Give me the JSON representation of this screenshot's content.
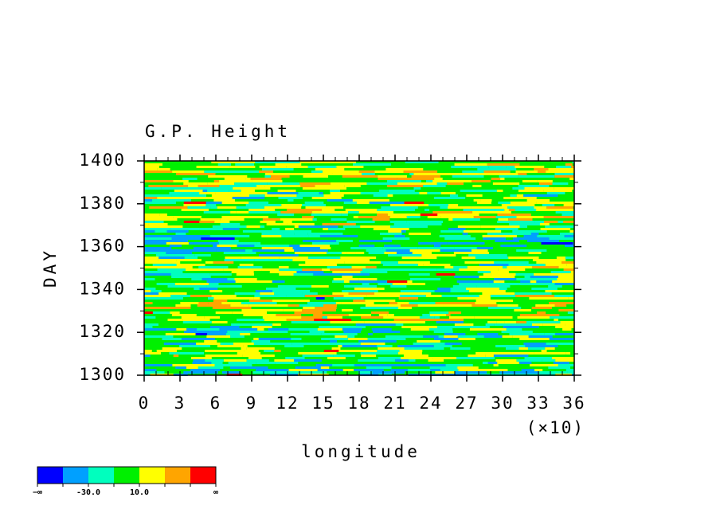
{
  "chart_data": {
    "type": "contour",
    "title": "G.P. Height",
    "xlabel": "longitude",
    "ylabel": "DAY",
    "x_scale_label": "(×10)",
    "xlim": [
      0,
      36
    ],
    "xticks": [
      0,
      3,
      6,
      9,
      12,
      15,
      18,
      21,
      24,
      27,
      30,
      33,
      36
    ],
    "x_minor_step": 1,
    "ylim": [
      1300,
      1400
    ],
    "yticks": [
      1300,
      1320,
      1340,
      1360,
      1380,
      1400
    ],
    "y_minor_step": 10,
    "colorbar": {
      "colors": [
        "#0000ff",
        "#00a0ff",
        "#00ffbe",
        "#00f000",
        "#ffff00",
        "#ffa500",
        "#ff0000"
      ],
      "boundaries": [
        "−∞",
        null,
        "-30.0",
        null,
        "10.0",
        null,
        null,
        "∞"
      ]
    }
  }
}
